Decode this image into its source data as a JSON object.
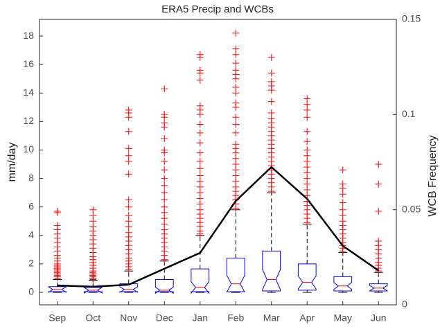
{
  "chart_data": {
    "type": "box",
    "title": "ERA5 Precip and WCBs",
    "y_label": "mm/day",
    "y2_label": "WCB Frequency",
    "categories": [
      "Sep",
      "Oct",
      "Nov",
      "Dec",
      "Jan",
      "Feb",
      "Mar",
      "Apr",
      "May",
      "Jun"
    ],
    "box_color": "#0000ff",
    "median_color": "#ff0000",
    "outlier_color": "#ff0000",
    "boxes": [
      {
        "min": 0,
        "q1": 0.05,
        "median": 0.2,
        "q3": 0.4,
        "max": 0.9,
        "outliers": [
          1.0,
          1.1,
          1.2,
          1.3,
          1.4,
          1.5,
          1.6,
          1.7,
          1.8,
          1.9,
          2.0,
          2.2,
          2.4,
          2.6,
          2.9,
          3.2,
          3.5,
          3.8,
          4.1,
          4.4,
          4.7,
          5.6,
          5.7
        ]
      },
      {
        "min": 0,
        "q1": 0.05,
        "median": 0.15,
        "q3": 0.35,
        "max": 0.85,
        "outliers": [
          0.9,
          1.0,
          1.1,
          1.2,
          1.3,
          1.4,
          1.5,
          1.7,
          1.9,
          2.1,
          2.3,
          2.5,
          2.8,
          3.1,
          3.4,
          3.7,
          4.0,
          4.3,
          4.6,
          5.0,
          5.4,
          5.8
        ]
      },
      {
        "min": 0,
        "q1": 0.05,
        "median": 0.2,
        "q3": 0.6,
        "max": 1.5,
        "outliers": [
          1.6,
          1.8,
          2.0,
          2.2,
          2.4,
          2.7,
          3.0,
          3.3,
          3.6,
          3.9,
          4.2,
          4.6,
          5.0,
          5.4,
          6.0,
          6.5,
          8.3,
          9.2,
          9.6,
          10.1,
          11.3,
          12.3,
          12.6,
          12.8
        ]
      },
      {
        "min": 0,
        "q1": 0.05,
        "median": 0.15,
        "q3": 0.9,
        "max": 2.2,
        "outliers": [
          2.3,
          2.6,
          2.9,
          3.2,
          3.5,
          3.8,
          4.1,
          4.4,
          4.8,
          5.2,
          5.6,
          6.0,
          6.5,
          7.0,
          7.5,
          8.0,
          8.6,
          9.2,
          9.8,
          10.0,
          10.8,
          11.6,
          11.9,
          12.3,
          12.5,
          14.3
        ]
      },
      {
        "min": 0,
        "q1": 0.05,
        "median": 0.35,
        "q3": 1.65,
        "max": 4.0,
        "outliers": [
          4.1,
          4.3,
          4.6,
          4.9,
          5.2,
          5.5,
          5.8,
          6.2,
          6.6,
          7.0,
          7.4,
          7.8,
          8.2,
          8.7,
          9.2,
          9.8,
          10.5,
          11.2,
          11.8,
          12.5,
          12.8,
          13.1,
          14.9,
          15.4,
          15.6,
          16.5,
          16.7
        ]
      },
      {
        "min": 0,
        "q1": 0.05,
        "median": 0.6,
        "q3": 2.4,
        "max": 5.8,
        "outliers": [
          5.9,
          6.2,
          6.5,
          6.8,
          7.1,
          7.4,
          7.8,
          8.2,
          8.6,
          9.0,
          9.4,
          9.8,
          10.1,
          10.4,
          11.2,
          11.8,
          12.3,
          13.0,
          13.3,
          14.0,
          14.4,
          15.0,
          15.3,
          15.6,
          16.1,
          16.7,
          17.1,
          18.2
        ]
      },
      {
        "min": 0,
        "q1": 0.1,
        "median": 0.9,
        "q3": 2.9,
        "max": 7.0,
        "outliers": [
          7.1,
          7.4,
          7.7,
          8.0,
          8.3,
          8.6,
          8.9,
          9.2,
          9.5,
          9.8,
          10.1,
          10.4,
          10.7,
          11.0,
          11.3,
          11.6,
          11.9,
          12.2,
          12.6,
          13.4,
          14.2,
          14.5,
          14.8,
          15.4,
          16.5
        ]
      },
      {
        "min": 0,
        "q1": 0.15,
        "median": 0.7,
        "q3": 2.0,
        "max": 4.8,
        "outliers": [
          4.9,
          5.2,
          5.5,
          5.8,
          6.1,
          6.4,
          6.8,
          7.2,
          7.6,
          8.0,
          8.4,
          8.8,
          9.2,
          9.6,
          10.0,
          10.6,
          11.3,
          12.3,
          12.8,
          13.2,
          13.6
        ]
      },
      {
        "min": 0,
        "q1": 0.1,
        "median": 0.45,
        "q3": 1.1,
        "max": 2.8,
        "outliers": [
          2.9,
          3.1,
          3.3,
          3.5,
          3.8,
          4.1,
          4.4,
          4.7,
          5.0,
          5.4,
          5.8,
          6.3,
          6.9,
          7.3,
          7.6,
          8.6
        ]
      },
      {
        "min": 0,
        "q1": 0.1,
        "median": 0.3,
        "q3": 0.6,
        "max": 1.4,
        "outliers": [
          1.5,
          1.7,
          1.9,
          2.1,
          2.4,
          2.7,
          3.0,
          3.3,
          3.6,
          5.7,
          7.6,
          9.0
        ]
      }
    ],
    "series": [
      {
        "color": "#000000",
        "axis": "y2",
        "values": [
          0.0102,
          0.0095,
          0.0106,
          0.019,
          0.0273,
          0.0546,
          0.0724,
          0.0557,
          0.031,
          0.018
        ]
      }
    ],
    "ylim": [
      -0.875,
      19.17
    ],
    "yticks": [
      0,
      2,
      4,
      6,
      8,
      10,
      12,
      14,
      16,
      18
    ],
    "y2lim": [
      0,
      0.15
    ],
    "y2ticks": [
      0,
      0.05,
      0.1,
      0.15
    ]
  }
}
